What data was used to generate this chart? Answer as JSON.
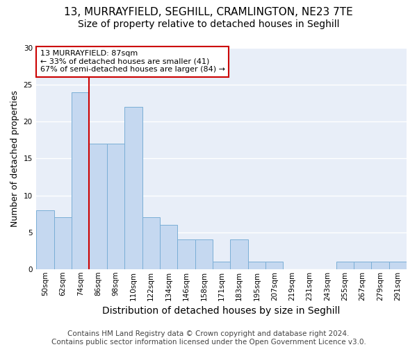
{
  "title_line1": "13, MURRAYFIELD, SEGHILL, CRAMLINGTON, NE23 7TE",
  "title_line2": "Size of property relative to detached houses in Seghill",
  "xlabel": "Distribution of detached houses by size in Seghill",
  "ylabel": "Number of detached properties",
  "bar_labels": [
    "50sqm",
    "62sqm",
    "74sqm",
    "86sqm",
    "98sqm",
    "110sqm",
    "122sqm",
    "134sqm",
    "146sqm",
    "158sqm",
    "171sqm",
    "183sqm",
    "195sqm",
    "207sqm",
    "219sqm",
    "231sqm",
    "243sqm",
    "255sqm",
    "267sqm",
    "279sqm",
    "291sqm"
  ],
  "bar_values": [
    8,
    7,
    24,
    17,
    17,
    22,
    7,
    6,
    4,
    4,
    1,
    4,
    1,
    1,
    0,
    0,
    0,
    1,
    1,
    1,
    1
  ],
  "bar_color": "#c5d8f0",
  "bar_edge_color": "#7aaed6",
  "axes_bg_color": "#e8eef8",
  "fig_bg_color": "#ffffff",
  "grid_color": "#ffffff",
  "vline_color": "#cc0000",
  "vline_x_index": 3,
  "annotation_text": "13 MURRAYFIELD: 87sqm\n← 33% of detached houses are smaller (41)\n67% of semi-detached houses are larger (84) →",
  "annotation_box_facecolor": "#ffffff",
  "annotation_box_edgecolor": "#cc0000",
  "footnote": "Contains HM Land Registry data © Crown copyright and database right 2024.\nContains public sector information licensed under the Open Government Licence v3.0.",
  "ylim": [
    0,
    30
  ],
  "yticks": [
    0,
    5,
    10,
    15,
    20,
    25,
    30
  ],
  "title1_fontsize": 11,
  "title2_fontsize": 10,
  "xlabel_fontsize": 10,
  "ylabel_fontsize": 9,
  "tick_fontsize": 7.5,
  "annotation_fontsize": 8,
  "footnote_fontsize": 7.5
}
